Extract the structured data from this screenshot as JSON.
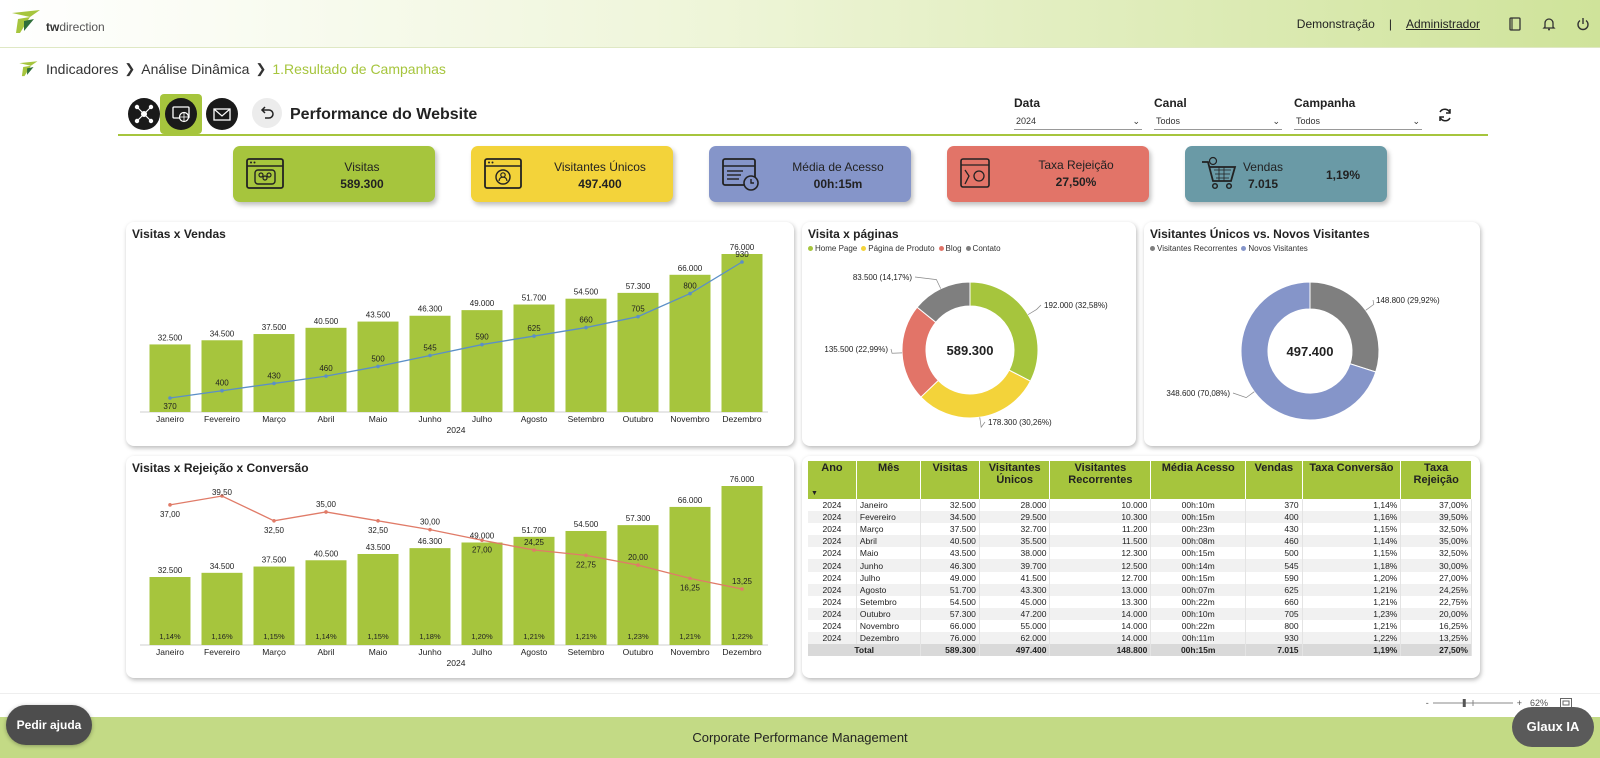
{
  "header": {
    "logo_text_a": "tw",
    "logo_text_b": "direction",
    "demo_label": "Demonstração",
    "separator": "|",
    "user_label": "Administrador",
    "icons": [
      "book-icon",
      "bell-icon",
      "power-icon"
    ]
  },
  "breadcrumb": {
    "items": [
      "Indicadores",
      "Análise Dinâmica",
      "1.Resultado de Campanhas"
    ]
  },
  "page": {
    "title": "Performance do Website",
    "filters": [
      {
        "label": "Data",
        "value": "2024"
      },
      {
        "label": "Canal",
        "value": "Todos"
      },
      {
        "label": "Campanha",
        "value": "Todos"
      }
    ]
  },
  "kpis": [
    {
      "label": "Visitas",
      "value": "589.300",
      "color": "#a6c53d",
      "icon": "browser-users-icon"
    },
    {
      "label": "Visitantes Únicos",
      "value": "497.400",
      "color": "#f3d33a",
      "icon": "browser-user-icon"
    },
    {
      "label": "Média de Acesso",
      "value": "00h:15m",
      "color": "#8595c9",
      "icon": "browser-clock-icon"
    },
    {
      "label": "Taxa Rejeição",
      "value": "27,50%",
      "color": "#e27468",
      "icon": "browser-reject-icon"
    },
    {
      "label": "Vendas",
      "value": "7.015",
      "extra": "1,19%",
      "color": "#6a9aa6",
      "icon": "cart-icon"
    }
  ],
  "colors": {
    "green": "#a6c53d",
    "blue_line": "#5b8fc7",
    "red_line": "#e07b68",
    "grey": "#7f7f7f",
    "yellow": "#f3d33a",
    "red": "#e27468",
    "blue": "#8595c9"
  },
  "chart_data": [
    {
      "type": "bar",
      "title": "Visitas x Vendas",
      "xlabel": "2024",
      "categories": [
        "Janeiro",
        "Fevereiro",
        "Março",
        "Abril",
        "Maio",
        "Junho",
        "Julho",
        "Agosto",
        "Setembro",
        "Outubro",
        "Novembro",
        "Dezembro"
      ],
      "bar_labels": [
        "32.500",
        "34.500",
        "37.500",
        "40.500",
        "43.500",
        "46.300",
        "49.000",
        "51.700",
        "54.500",
        "57.300",
        "66.000",
        "76.000"
      ],
      "line_labels": [
        "370",
        "400",
        "430",
        "460",
        "500",
        "545",
        "590",
        "625",
        "660",
        "705",
        "800",
        "930"
      ],
      "series": [
        {
          "name": "Visitas",
          "type": "bar",
          "values": [
            32500,
            34500,
            37500,
            40500,
            43500,
            46300,
            49000,
            51700,
            54500,
            57300,
            66000,
            76000
          ]
        },
        {
          "name": "Vendas",
          "type": "line",
          "values": [
            370,
            400,
            430,
            460,
            500,
            545,
            590,
            625,
            660,
            705,
            800,
            930
          ]
        }
      ]
    },
    {
      "type": "pie",
      "title": "Visita x páginas",
      "center_label": "589.300",
      "legend": [
        "Home Page",
        "Página de Produto",
        "Blog",
        "Contato"
      ],
      "labels": [
        "Home Page",
        "Página de Produto",
        "Blog",
        "Contato"
      ],
      "values": [
        192000,
        178300,
        135500,
        83500
      ],
      "slice_labels": [
        "192.000 (32,58%)",
        "178.300 (30,26%)",
        "135.500 (22,99%)",
        "83.500 (14,17%)"
      ],
      "colors": [
        "#a6c53d",
        "#f3d33a",
        "#e27468",
        "#7f7f7f"
      ]
    },
    {
      "type": "pie",
      "title": "Visitantes Únicos vs. Novos Visitantes",
      "center_label": "497.400",
      "legend": [
        "Visitantes Recorrentes",
        "Novos Visitantes"
      ],
      "labels": [
        "Visitantes Recorrentes",
        "Novos Visitantes"
      ],
      "values": [
        148800,
        348600
      ],
      "slice_labels": [
        "148.800 (29,92%)",
        "348.600 (70,08%)"
      ],
      "colors": [
        "#7f7f7f",
        "#8595c9"
      ]
    },
    {
      "type": "bar",
      "title": "Visitas x Rejeição x Conversão",
      "xlabel": "2024",
      "categories": [
        "Janeiro",
        "Fevereiro",
        "Março",
        "Abril",
        "Maio",
        "Junho",
        "Julho",
        "Agosto",
        "Setembro",
        "Outubro",
        "Novembro",
        "Dezembro"
      ],
      "bar_labels": [
        "32.500",
        "34.500",
        "37.500",
        "40.500",
        "43.500",
        "46.300",
        "49.000",
        "51.700",
        "54.500",
        "57.300",
        "66.000",
        "76.000"
      ],
      "conv_labels": [
        "1,14%",
        "1,16%",
        "1,15%",
        "1,14%",
        "1,15%",
        "1,18%",
        "1,20%",
        "1,21%",
        "1,21%",
        "1,23%",
        "1,21%",
        "1,22%"
      ],
      "line_labels": [
        "37,00",
        "39,50",
        "32,50",
        "35,00",
        "32,50",
        "30,00",
        "27,00",
        "24,25",
        "22,75",
        "20,00",
        "16,25",
        "13,25"
      ],
      "series": [
        {
          "name": "Visitas",
          "type": "bar",
          "values": [
            32500,
            34500,
            37500,
            40500,
            43500,
            46300,
            49000,
            51700,
            54500,
            57300,
            66000,
            76000
          ]
        },
        {
          "name": "Taxa Rejeição",
          "type": "line",
          "values": [
            37.0,
            39.5,
            32.5,
            35.0,
            32.5,
            30.0,
            27.0,
            24.25,
            22.75,
            20.0,
            16.25,
            13.25
          ]
        },
        {
          "name": "Taxa Conversão",
          "type": "label",
          "values": [
            1.14,
            1.16,
            1.15,
            1.14,
            1.15,
            1.18,
            1.2,
            1.21,
            1.21,
            1.23,
            1.21,
            1.22
          ]
        }
      ]
    },
    {
      "type": "table",
      "columns": [
        "Ano",
        "Mês",
        "Visitas",
        "Visitantes Únicos",
        "Visitantes Recorrentes",
        "Média Acesso",
        "Vendas",
        "Taxa Conversão",
        "Taxa Rejeição"
      ],
      "rows": [
        [
          "2024",
          "Janeiro",
          "32.500",
          "28.000",
          "10.000",
          "00h:10m",
          "370",
          "1,14%",
          "37,00%"
        ],
        [
          "2024",
          "Fevereiro",
          "34.500",
          "29.500",
          "10.300",
          "00h:15m",
          "400",
          "1,16%",
          "39,50%"
        ],
        [
          "2024",
          "Março",
          "37.500",
          "32.700",
          "11.200",
          "00h:23m",
          "430",
          "1,15%",
          "32,50%"
        ],
        [
          "2024",
          "Abril",
          "40.500",
          "35.500",
          "11.500",
          "00h:08m",
          "460",
          "1,14%",
          "35,00%"
        ],
        [
          "2024",
          "Maio",
          "43.500",
          "38.000",
          "12.300",
          "00h:15m",
          "500",
          "1,15%",
          "32,50%"
        ],
        [
          "2024",
          "Junho",
          "46.300",
          "39.700",
          "12.500",
          "00h:14m",
          "545",
          "1,18%",
          "30,00%"
        ],
        [
          "2024",
          "Julho",
          "49.000",
          "41.500",
          "12.700",
          "00h:15m",
          "590",
          "1,20%",
          "27,00%"
        ],
        [
          "2024",
          "Agosto",
          "51.700",
          "43.300",
          "13.000",
          "00h:07m",
          "625",
          "1,21%",
          "24,25%"
        ],
        [
          "2024",
          "Setembro",
          "54.500",
          "45.000",
          "13.300",
          "00h:22m",
          "660",
          "1,21%",
          "22,75%"
        ],
        [
          "2024",
          "Outubro",
          "57.300",
          "47.200",
          "14.000",
          "00h:10m",
          "705",
          "1,23%",
          "20,00%"
        ],
        [
          "2024",
          "Novembro",
          "66.000",
          "55.000",
          "14.000",
          "00h:22m",
          "800",
          "1,21%",
          "16,25%"
        ],
        [
          "2024",
          "Dezembro",
          "76.000",
          "62.000",
          "14.000",
          "00h:11m",
          "930",
          "1,22%",
          "13,25%"
        ]
      ],
      "total": [
        "Total",
        "589.300",
        "497.400",
        "148.800",
        "00h:15m",
        "7.015",
        "1,19%",
        "27,50%"
      ]
    }
  ],
  "statusbar": {
    "zoom_minus": "-",
    "zoom_plus": "+",
    "zoom_value": "62%",
    "zoom_level": 0.62
  },
  "footer": {
    "text": "Corporate Performance Management",
    "help_label": "Pedir ajuda",
    "glaux_label": "Glaux IA"
  }
}
